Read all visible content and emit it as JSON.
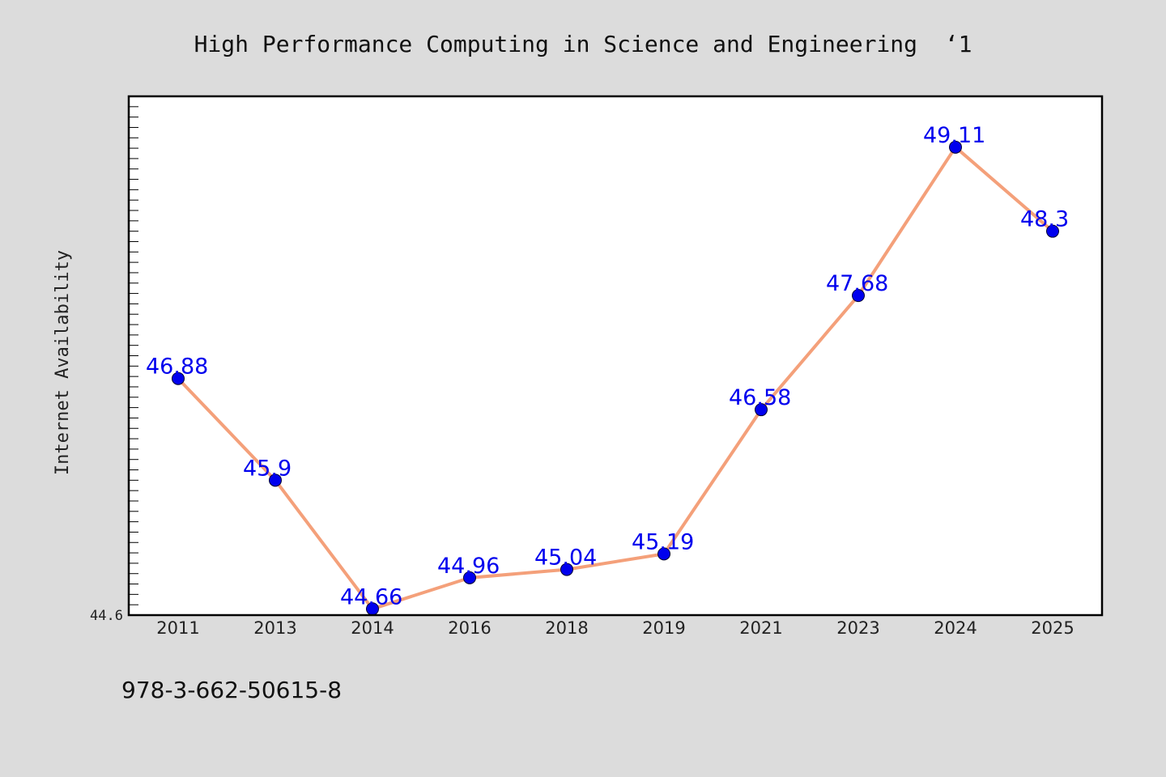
{
  "colors": {
    "background": "#dcdcdc",
    "plot_background": "#ffffff",
    "line": "#f4a07a",
    "marker": "#0000ee",
    "data_label": "#0000ee",
    "axis": "#000000"
  },
  "footer": {
    "isbn": "978-3-662-50615-8"
  },
  "chart_data": {
    "type": "line",
    "title": "High Performance Computing in Science and Engineering  ‘1",
    "xlabel": "",
    "ylabel": "Internet Availability",
    "categories": [
      "2011",
      "2013",
      "2014",
      "2016",
      "2018",
      "2019",
      "2021",
      "2023",
      "2024",
      "2025"
    ],
    "series": [
      {
        "values": [
          46.88,
          45.9,
          44.66,
          44.96,
          45.04,
          45.19,
          46.58,
          47.68,
          49.11,
          48.3
        ],
        "data_labels": [
          "46.88",
          "45.9",
          "44.66",
          "44.96",
          "45.04",
          "45.19",
          "46.58",
          "47.68",
          "49.11",
          "48.3"
        ]
      }
    ],
    "ylim": [
      44.6,
      49.6
    ],
    "yticks_labeled": [
      "44.6"
    ],
    "grid": false,
    "legend": "none",
    "marker": "circle"
  }
}
